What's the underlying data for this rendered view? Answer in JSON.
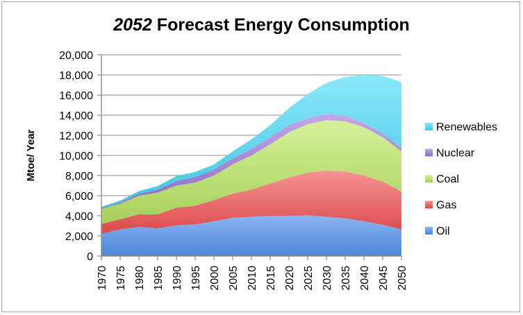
{
  "chart_data": {
    "type": "area",
    "stacked": true,
    "title_prefix": "2052",
    "title_rest": " Forecast Energy Consumption",
    "title": "2052 Forecast Energy Consumption",
    "xlabel": "",
    "ylabel": "Mtoe/ Year",
    "ylim": [
      0,
      20000
    ],
    "yticks": [
      "0",
      "2,000",
      "4,000",
      "6,000",
      "8,000",
      "10,000",
      "12,000",
      "14,000",
      "16,000",
      "18,000",
      "20,000"
    ],
    "ytick_values": [
      0,
      2000,
      4000,
      6000,
      8000,
      10000,
      12000,
      14000,
      16000,
      18000,
      20000
    ],
    "grid": true,
    "legend_position": "right",
    "x": [
      "1970",
      "1975",
      "1980",
      "1985",
      "1990",
      "1995",
      "2000",
      "2005",
      "2010",
      "2015",
      "2020",
      "2025",
      "2030",
      "2035",
      "2040",
      "2045",
      "2050"
    ],
    "series": [
      {
        "name": "Oil",
        "color": "#4a86d4",
        "color_light": "#8db4f2",
        "values": [
          2200,
          2650,
          2900,
          2750,
          3050,
          3150,
          3450,
          3800,
          3900,
          4000,
          4000,
          4050,
          3900,
          3750,
          3450,
          3100,
          2650
        ]
      },
      {
        "name": "Gas",
        "color": "#d94a4a",
        "color_light": "#f69494",
        "values": [
          1000,
          1000,
          1250,
          1400,
          1750,
          1850,
          2100,
          2400,
          2700,
          3200,
          3800,
          4250,
          4600,
          4650,
          4550,
          4300,
          3750
        ]
      },
      {
        "name": "Coal",
        "color": "#a6cf5a",
        "color_light": "#d6f29a",
        "values": [
          1500,
          1550,
          1850,
          2150,
          2200,
          2300,
          2450,
          2900,
          3400,
          3900,
          4500,
          4800,
          5000,
          5000,
          4800,
          4400,
          4000
        ]
      },
      {
        "name": "Nuclear",
        "color": "#8a6cc4",
        "color_light": "#c3a8e8",
        "values": [
          50,
          100,
          200,
          300,
          450,
          550,
          600,
          600,
          650,
          700,
          700,
          600,
          600,
          550,
          400,
          400,
          300
        ]
      },
      {
        "name": "Renewables",
        "color": "#3fc4e0",
        "color_light": "#8ce8fb",
        "values": [
          150,
          200,
          250,
          350,
          500,
          500,
          500,
          700,
          950,
          1200,
          1700,
          2400,
          3100,
          3850,
          4800,
          5700,
          6600
        ]
      }
    ],
    "legend_order": [
      "Renewables",
      "Nuclear",
      "Coal",
      "Gas",
      "Oil"
    ]
  }
}
